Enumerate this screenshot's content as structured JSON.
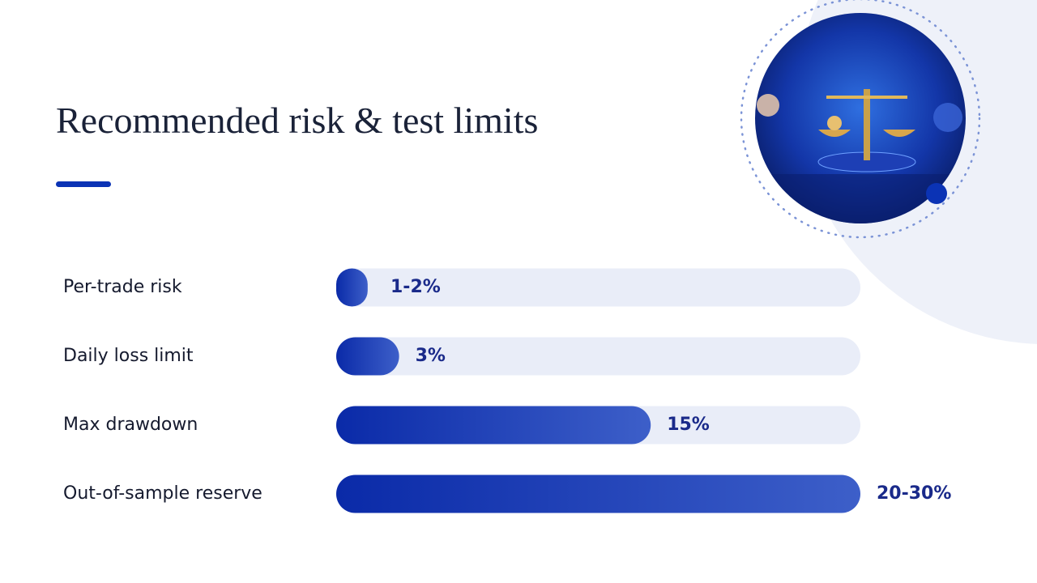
{
  "chart_data": {
    "type": "bar",
    "orientation": "horizontal",
    "title": "Recommended risk & test limits",
    "categories": [
      "Per-trade risk",
      "Daily loss limit",
      "Max drawdown",
      "Out-of-sample reserve"
    ],
    "values": [
      1.5,
      3,
      15,
      25
    ],
    "value_labels": [
      "1-2%",
      "3%",
      "15%",
      "20-30%"
    ],
    "color": "#0b33b5",
    "xlim": [
      0,
      25
    ]
  }
}
